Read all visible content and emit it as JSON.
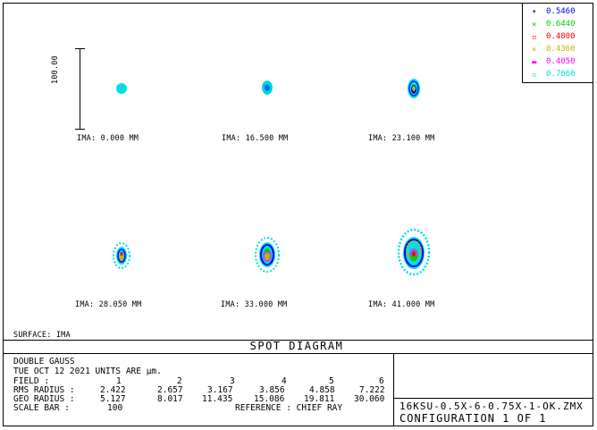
{
  "legend": [
    {
      "value": "0.5460",
      "color": "#0000ff",
      "mark": "•"
    },
    {
      "value": "0.6440",
      "color": "#00d000",
      "mark": "×"
    },
    {
      "value": "0.4800",
      "color": "#ff0000",
      "mark": "▫"
    },
    {
      "value": "0.4360",
      "color": "#c8b400",
      "mark": "×"
    },
    {
      "value": "0.4050",
      "color": "#ff00ff",
      "mark": "▬"
    },
    {
      "value": "0.7060",
      "color": "#00e0e0",
      "mark": "▫"
    }
  ],
  "scale_bar_label": "100.00",
  "fields": [
    {
      "label": "IMA: 0.000 MM"
    },
    {
      "label": "IMA: 16.500 MM"
    },
    {
      "label": "IMA: 23.100 MM"
    },
    {
      "label": "IMA: 28.050 MM"
    },
    {
      "label": "IMA: 33.000 MM"
    },
    {
      "label": "IMA: 41.000 MM"
    }
  ],
  "surface": "SURFACE: IMA",
  "title": "SPOT DIAGRAM",
  "info": {
    "lens": "DOUBLE GAUSS",
    "date_units": "TUE OCT 12 2021   UNITS ARE µm.",
    "field_label": "FIELD       :",
    "field_values": [
      "1",
      "2",
      "3",
      "4",
      "5",
      "6"
    ],
    "rms_label": "RMS RADIUS  :",
    "rms_values": [
      "2.422",
      "2.657",
      "3.167",
      "3.856",
      "4.858",
      "7.222"
    ],
    "geo_label": "GEO RADIUS  :",
    "geo_values": [
      "5.127",
      "8.017",
      "11.435",
      "15.086",
      "19.811",
      "30.060"
    ],
    "scale_label": "SCALE BAR   :",
    "scale_value": "100",
    "reference": "REFERENCE   : CHIEF RAY"
  },
  "file": "16KSU-0.5X-6-0.75X-1-OK.ZMX",
  "configuration": "CONFIGURATION  1  OF  1"
}
